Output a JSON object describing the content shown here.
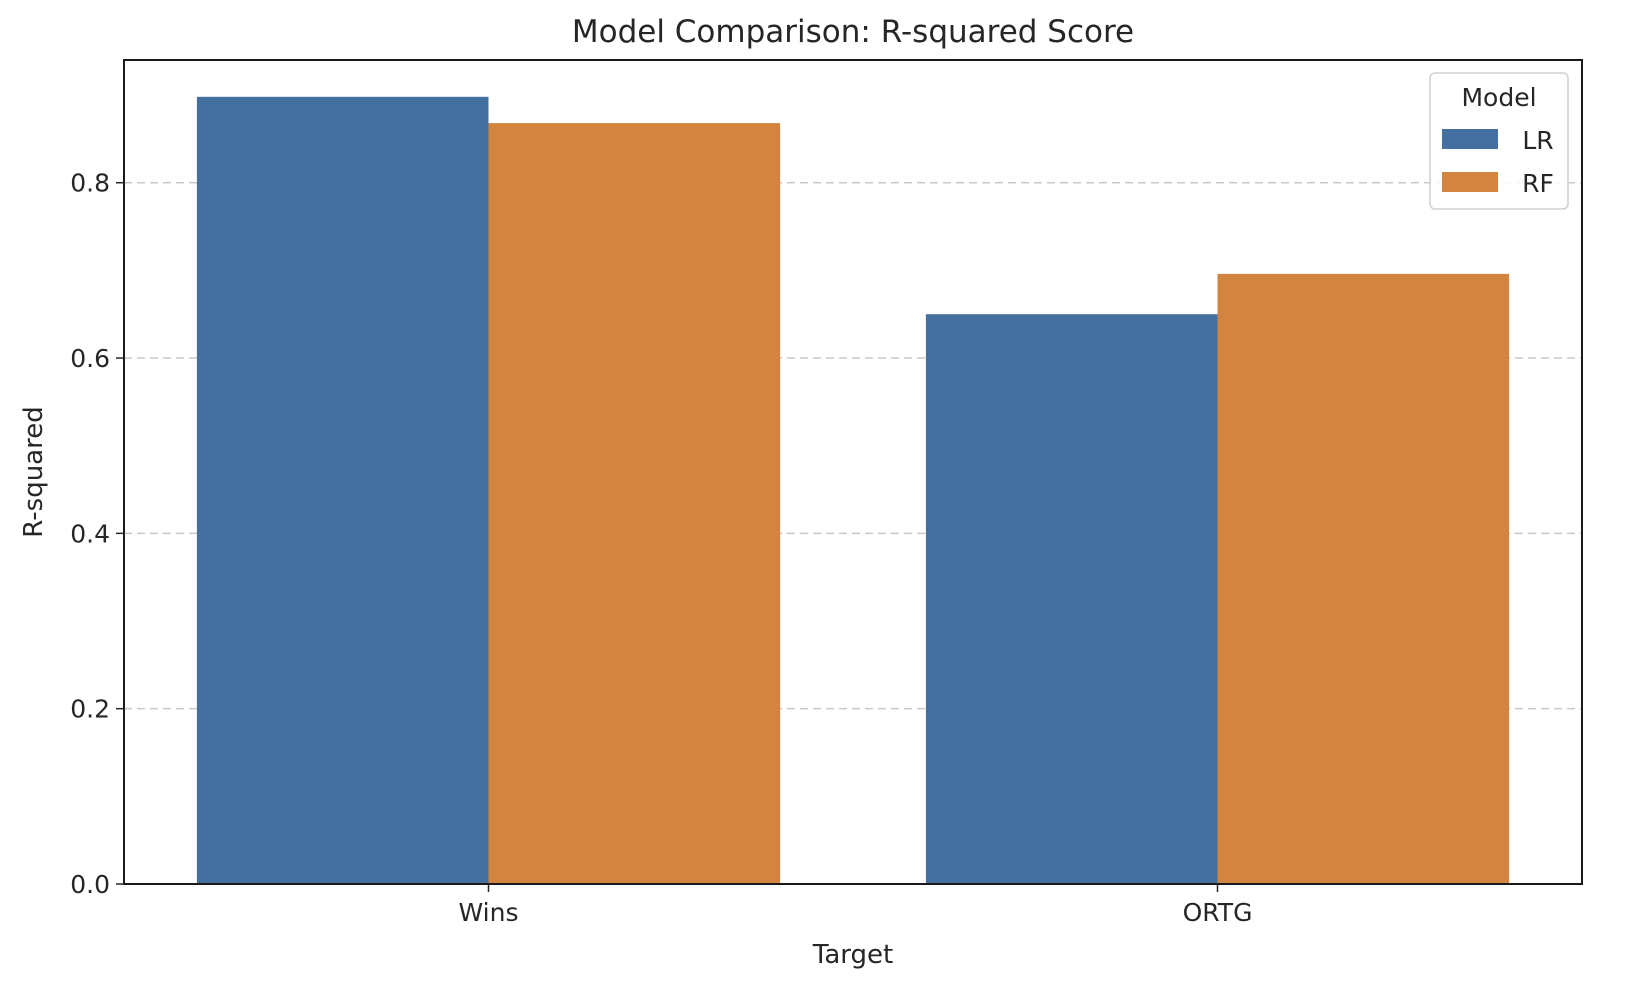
{
  "chart_data": {
    "type": "bar",
    "title": "Model Comparison: R-squared Score",
    "xlabel": "Target",
    "ylabel": "R-squared",
    "categories": [
      "Wins",
      "ORTG"
    ],
    "series": [
      {
        "name": "LR",
        "color": "#4470a0",
        "values": [
          0.898,
          0.65
        ]
      },
      {
        "name": "RF",
        "color": "#d3843f",
        "values": [
          0.868,
          0.696
        ]
      }
    ],
    "ylim": [
      0,
      0.94
    ],
    "yticks": [
      0.0,
      0.2,
      0.4,
      0.6,
      0.8
    ],
    "ytick_labels": [
      "0.0",
      "0.2",
      "0.4",
      "0.6",
      "0.8"
    ],
    "grid": true,
    "legend": {
      "title": "Model",
      "placement": "top-right"
    }
  }
}
